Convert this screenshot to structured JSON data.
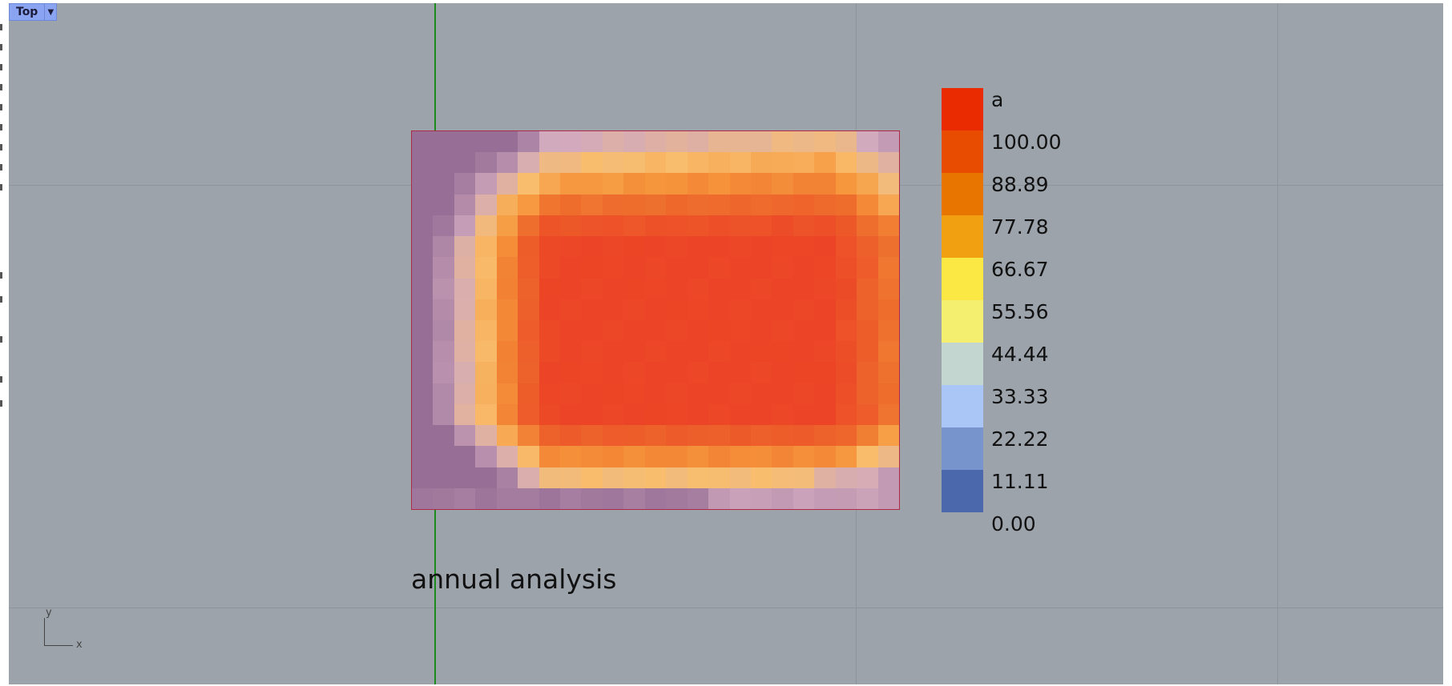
{
  "viewport": {
    "name": "Top",
    "dropdown_icon": "triangle-down-icon"
  },
  "annotation": "annual analysis",
  "legend": {
    "title": "a",
    "entries": [
      {
        "label": "100.00",
        "color": "#ea2a00"
      },
      {
        "label": "88.89",
        "color": "#e84c00"
      },
      {
        "label": "77.78",
        "color": "#e87500"
      },
      {
        "label": "66.67",
        "color": "#f0a010"
      },
      {
        "label": "55.56",
        "color": "#fce845"
      },
      {
        "label": "44.44",
        "color": "#f4ef6e"
      },
      {
        "label": "33.33",
        "color": "#c3d6cf"
      },
      {
        "label": "22.22",
        "color": "#aac6f6"
      },
      {
        "label": "11.11",
        "color": "#7794cd"
      },
      {
        "label": "0.00",
        "color": "#4a68ab"
      }
    ]
  },
  "axis_gizmo": {
    "x": "x",
    "y": "y"
  }
}
